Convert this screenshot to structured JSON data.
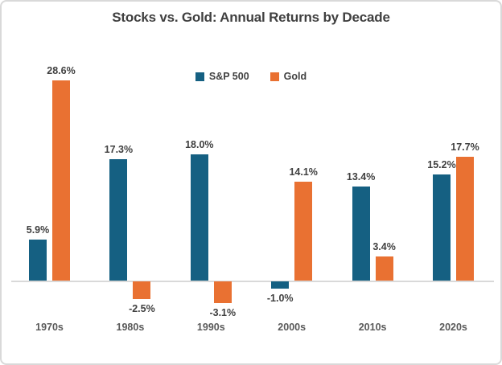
{
  "title": "Stocks vs. Gold: Annual Returns by Decade",
  "colors": {
    "sp500": "#156082",
    "gold": "#E97132",
    "title_text": "#404040",
    "data_label": "#404040",
    "category_label": "#595959",
    "axis_line": "#D9D9D9",
    "border": "#D9D9D9",
    "background": "#FFFFFF"
  },
  "chart_data": {
    "type": "bar",
    "title": "Stocks vs. Gold: Annual Returns by Decade",
    "categories": [
      "1970s",
      "1980s",
      "1990s",
      "2000s",
      "2010s",
      "2020s"
    ],
    "series": [
      {
        "name": "S&P 500",
        "color": "#156082",
        "values": [
          5.9,
          17.3,
          18.0,
          -1.0,
          13.4,
          15.2
        ]
      },
      {
        "name": "Gold",
        "color": "#E97132",
        "values": [
          28.6,
          -2.5,
          -3.1,
          14.1,
          3.4,
          17.7
        ]
      }
    ],
    "value_suffix": "%",
    "value_decimals": 1,
    "data_labels": true,
    "ylim": [
      -5,
      31
    ],
    "grid": false,
    "legend_position": "top-center",
    "xlabel": "",
    "ylabel": ""
  }
}
